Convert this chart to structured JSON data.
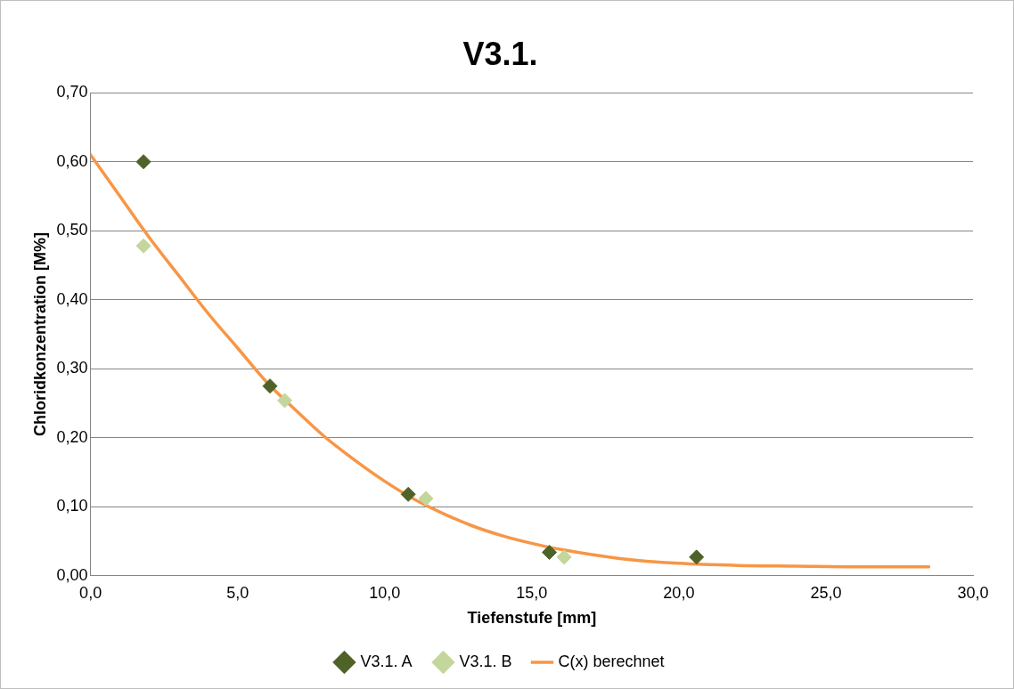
{
  "chart_data": {
    "type": "scatter",
    "title": "V3.1.",
    "xlabel": "Tiefenstufe [mm]",
    "ylabel": "Chloridkonzentration [M%]",
    "xlim": [
      0,
      30
    ],
    "xticks": [
      {
        "value": 0,
        "label": "0,0"
      },
      {
        "value": 5,
        "label": "5,0"
      },
      {
        "value": 10,
        "label": "10,0"
      },
      {
        "value": 15,
        "label": "15,0"
      },
      {
        "value": 20,
        "label": "20,0"
      },
      {
        "value": 25,
        "label": "25,0"
      },
      {
        "value": 30,
        "label": "30,0"
      }
    ],
    "ylim": [
      0,
      0.7
    ],
    "yticks": [
      {
        "value": 0,
        "label": "0,00"
      },
      {
        "value": 0.1,
        "label": "0,10"
      },
      {
        "value": 0.2,
        "label": "0,20"
      },
      {
        "value": 0.3,
        "label": "0,30"
      },
      {
        "value": 0.4,
        "label": "0,40"
      },
      {
        "value": 0.5,
        "label": "0,50"
      },
      {
        "value": 0.6,
        "label": "0,60"
      },
      {
        "value": 0.7,
        "label": "0,70"
      }
    ],
    "grid": "y",
    "legend": "bottom",
    "marker": "diamond",
    "series": [
      {
        "name": "V3.1. A",
        "color": "#4f6228",
        "x": [
          1.8,
          6.1,
          10.8,
          15.6,
          20.6
        ],
        "values": [
          0.6,
          0.275,
          0.118,
          0.034,
          0.027
        ]
      },
      {
        "name": "V3.1. B",
        "color": "#c3d69b",
        "x": [
          1.8,
          6.6,
          11.4,
          16.1
        ],
        "values": [
          0.478,
          0.254,
          0.112,
          0.027
        ]
      },
      {
        "name": "C(x) berechnet",
        "type": "line",
        "color": "#f79646",
        "marker": "none",
        "x": [
          0,
          1,
          2,
          3,
          4,
          5,
          6,
          7,
          8,
          9,
          10,
          11,
          12,
          13,
          14,
          15,
          16,
          18,
          20,
          22,
          24,
          26,
          28.5
        ],
        "values": [
          0.61,
          0.55,
          0.49,
          0.435,
          0.38,
          0.33,
          0.28,
          0.239,
          0.2,
          0.167,
          0.137,
          0.111,
          0.09,
          0.072,
          0.058,
          0.047,
          0.038,
          0.025,
          0.018,
          0.015,
          0.014,
          0.013,
          0.013
        ]
      }
    ]
  }
}
